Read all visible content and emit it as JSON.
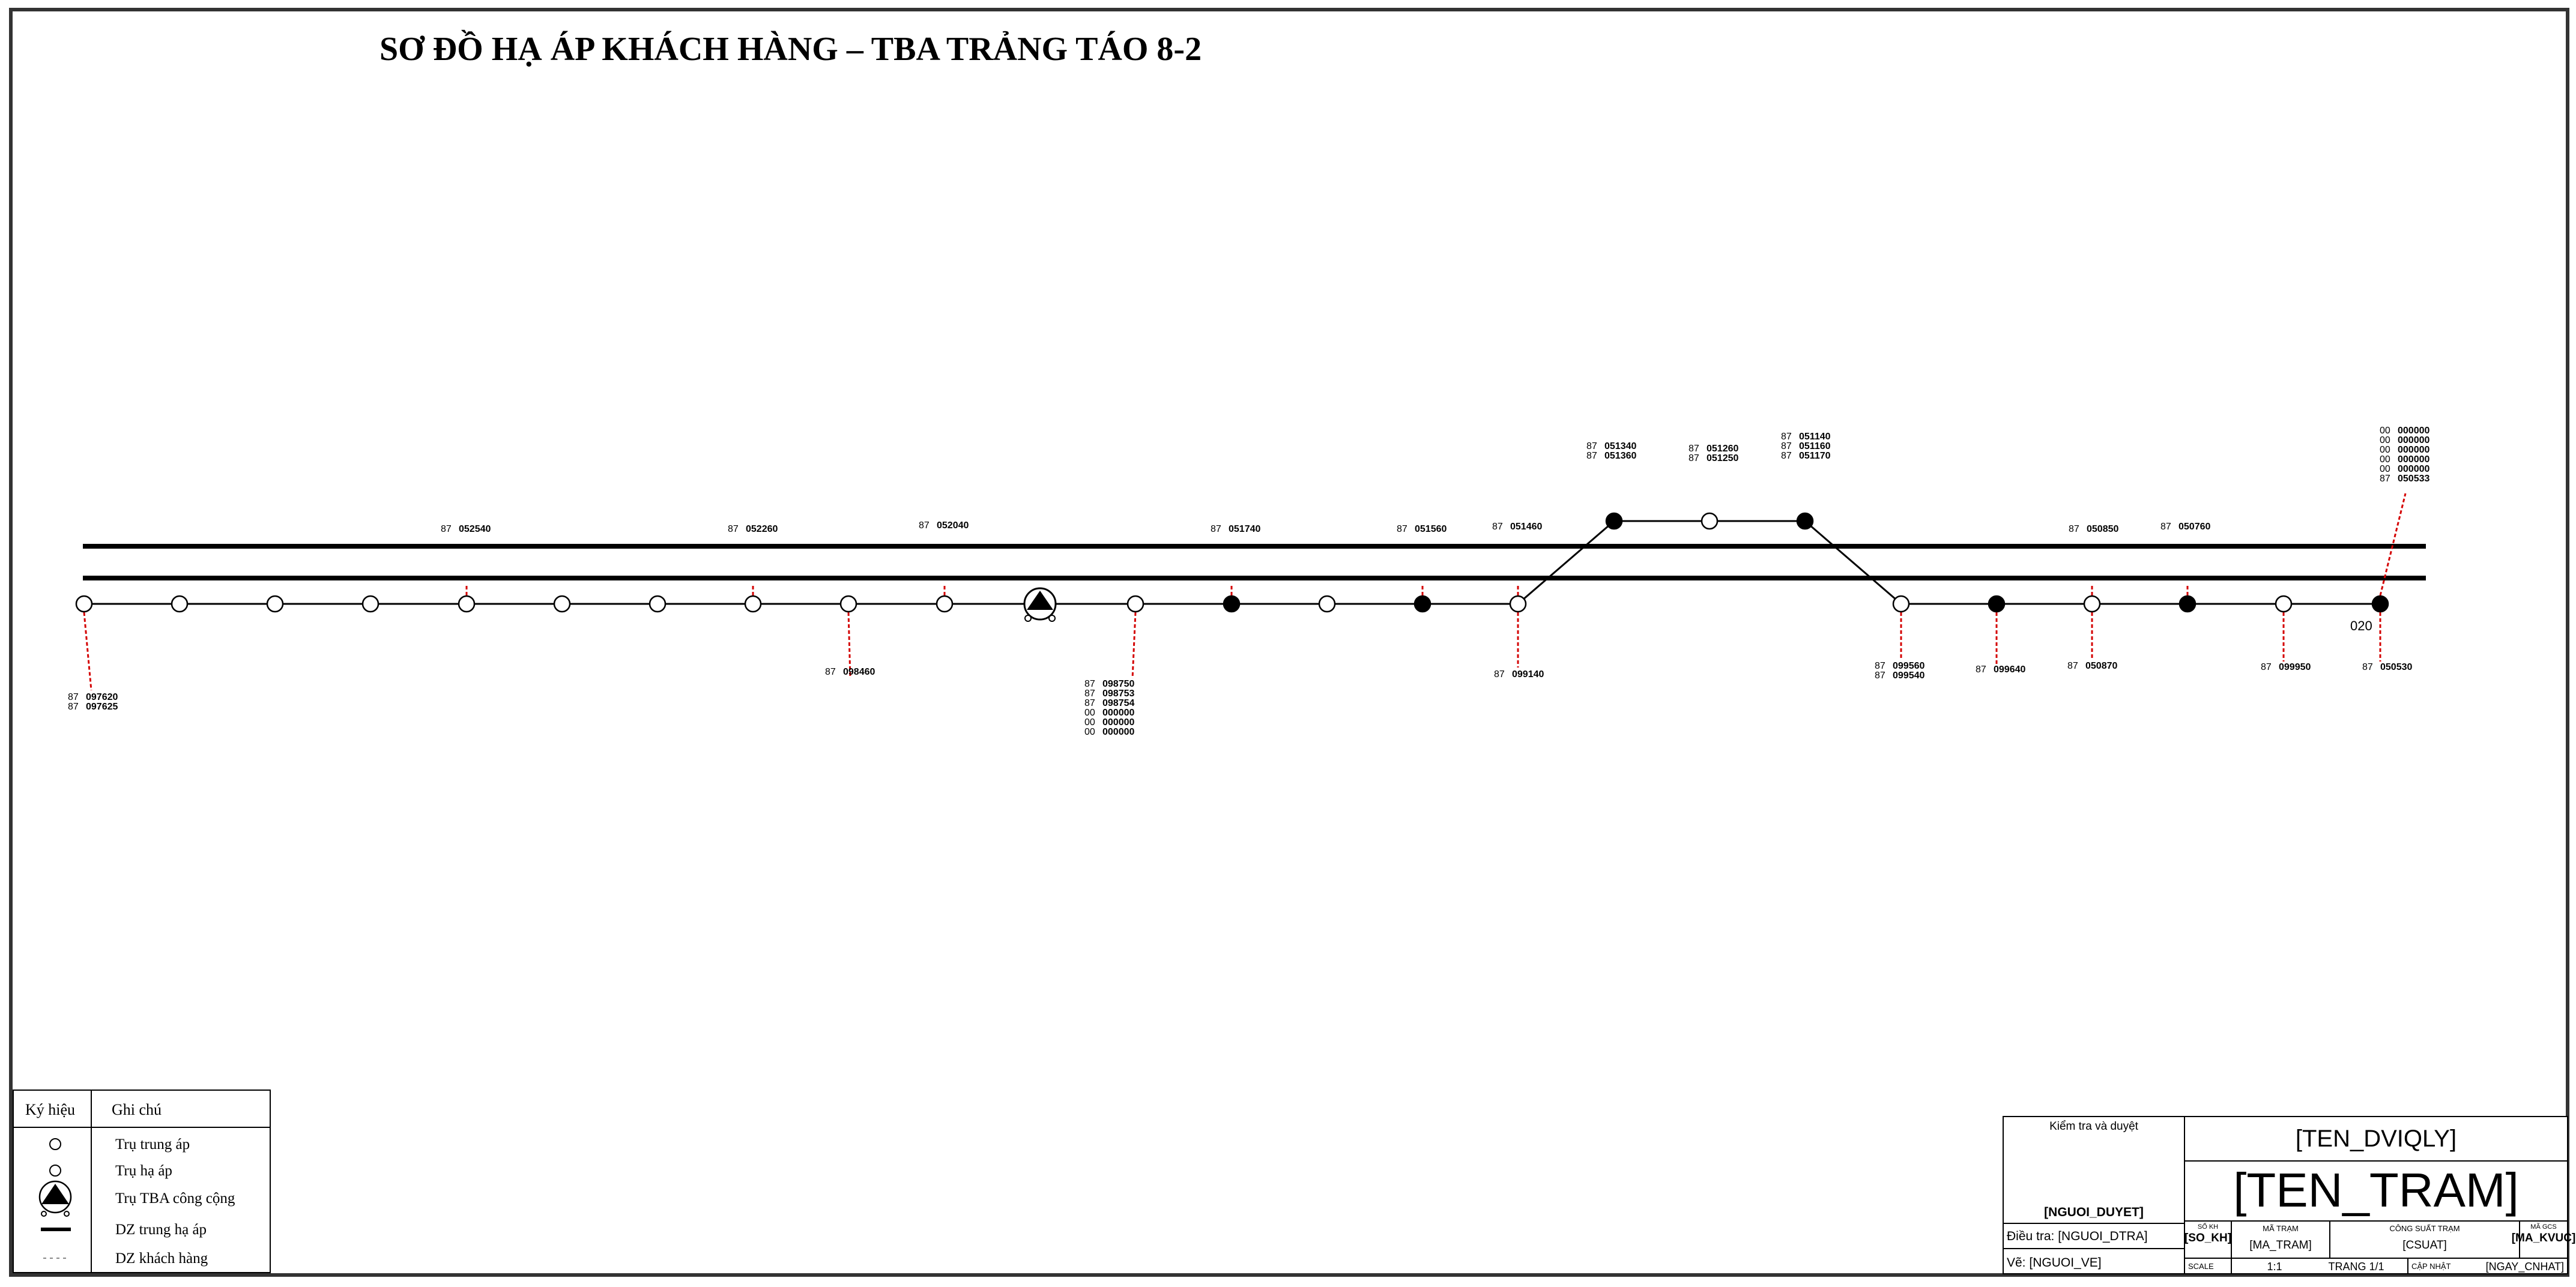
{
  "title": "SƠ ĐỒ HẠ ÁP KHÁCH HÀNG – TBA TRẢNG TÁO 8-2",
  "colors": {
    "line": "#000000",
    "customer_drop": "#d40000",
    "frame": "#333333",
    "background": "#ffffff"
  },
  "poles": [
    {
      "id": "p1",
      "kind": "open",
      "labels_below": [
        {
          "prefix": "87",
          "number": "097620"
        },
        {
          "prefix": "87",
          "number": "097625"
        }
      ]
    },
    {
      "id": "p2",
      "kind": "open"
    },
    {
      "id": "p3",
      "kind": "open"
    },
    {
      "id": "p4",
      "kind": "open"
    },
    {
      "id": "p5",
      "kind": "open",
      "labels_above": [
        {
          "prefix": "87",
          "number": "052540"
        }
      ]
    },
    {
      "id": "p6",
      "kind": "open"
    },
    {
      "id": "p7",
      "kind": "open"
    },
    {
      "id": "p8",
      "kind": "open",
      "labels_above": [
        {
          "prefix": "87",
          "number": "052260"
        }
      ]
    },
    {
      "id": "p9",
      "kind": "open",
      "labels_below": [
        {
          "prefix": "87",
          "number": "098460"
        }
      ]
    },
    {
      "id": "p10",
      "kind": "open",
      "labels_above": [
        {
          "prefix": "87",
          "number": "052040"
        }
      ]
    },
    {
      "id": "p11",
      "kind": "substation"
    },
    {
      "id": "p12",
      "kind": "open",
      "labels_below": [
        {
          "prefix": "87",
          "number": "098750"
        },
        {
          "prefix": "87",
          "number": "098753"
        },
        {
          "prefix": "87",
          "number": "098754"
        },
        {
          "prefix": "00",
          "number": "000000"
        },
        {
          "prefix": "00",
          "number": "000000"
        },
        {
          "prefix": "00",
          "number": "000000"
        }
      ]
    },
    {
      "id": "p13",
      "kind": "filled",
      "labels_above": [
        {
          "prefix": "87",
          "number": "051740"
        }
      ]
    },
    {
      "id": "p14",
      "kind": "open"
    },
    {
      "id": "p15",
      "kind": "filled",
      "labels_above": [
        {
          "prefix": "87",
          "number": "051560"
        }
      ]
    },
    {
      "id": "p16",
      "kind": "open",
      "labels_above": [
        {
          "prefix": "87",
          "number": "051460"
        }
      ],
      "labels_below": [
        {
          "prefix": "87",
          "number": "099140"
        }
      ]
    },
    {
      "id": "p17",
      "kind": "filled",
      "labels_above": [
        {
          "prefix": "87",
          "number": "051340"
        },
        {
          "prefix": "87",
          "number": "051360"
        }
      ]
    },
    {
      "id": "p18",
      "kind": "open",
      "labels_above": [
        {
          "prefix": "87",
          "number": "051260"
        },
        {
          "prefix": "87",
          "number": "051250"
        }
      ]
    },
    {
      "id": "p19",
      "kind": "filled",
      "labels_above": [
        {
          "prefix": "87",
          "number": "051140"
        },
        {
          "prefix": "87",
          "number": "051160"
        },
        {
          "prefix": "87",
          "number": "051170"
        }
      ]
    },
    {
      "id": "p20",
      "kind": "open",
      "labels_below": [
        {
          "prefix": "87",
          "number": "099560"
        },
        {
          "prefix": "87",
          "number": "099540"
        }
      ]
    },
    {
      "id": "p21",
      "kind": "filled",
      "labels_below": [
        {
          "prefix": "87",
          "number": "099640"
        }
      ]
    },
    {
      "id": "p22",
      "kind": "open",
      "labels_above": [
        {
          "prefix": "87",
          "number": "050850"
        }
      ],
      "labels_below": [
        {
          "prefix": "87",
          "number": "050870"
        }
      ]
    },
    {
      "id": "p23",
      "kind": "filled",
      "labels_above": [
        {
          "prefix": "87",
          "number": "050760"
        }
      ]
    },
    {
      "id": "p24",
      "kind": "open",
      "labels_below": [
        {
          "prefix": "87",
          "number": "099950"
        }
      ]
    },
    {
      "id": "p25",
      "kind": "filled",
      "pole_code": "020",
      "labels_above": [
        {
          "prefix": "00",
          "number": "000000"
        },
        {
          "prefix": "00",
          "number": "000000"
        },
        {
          "prefix": "00",
          "number": "000000"
        },
        {
          "prefix": "00",
          "number": "000000"
        },
        {
          "prefix": "00",
          "number": "000000"
        },
        {
          "prefix": "87",
          "number": "050533"
        }
      ],
      "labels_below": [
        {
          "prefix": "87",
          "number": "050530"
        }
      ]
    }
  ],
  "legend": {
    "col_symbol": "Ký hiệu",
    "col_note": "Ghi chú",
    "rows": [
      {
        "symbol": "mv-pole-icon",
        "label": "Trụ trung áp"
      },
      {
        "symbol": "lv-pole-icon",
        "label": "Trụ hạ áp"
      },
      {
        "symbol": "substation-icon",
        "label": "Trụ TBA công cộng"
      },
      {
        "symbol": "thick-line-icon",
        "label": "DZ trung hạ áp"
      },
      {
        "symbol": "dashed-line-icon",
        "label": "DZ khách hàng"
      }
    ]
  },
  "title_block": {
    "review_label": "Kiểm tra và duyệt",
    "approver": "[NGUOI_DUYET]",
    "surveyor": "Điều tra: [NGUOI_DTRA]",
    "drafter": "Vẽ: [NGUOI_VE]",
    "unit_name": "[TEN_DVIQLY]",
    "station_name": "[TEN_TRAM]",
    "drawing_no_label": "SỐ KH",
    "drawing_no_value": "[SO_KH]",
    "station_code_label": "MÃ TRẠM",
    "station_code_value": "[MA_TRAM]",
    "capacity_label": "CÔNG SUẤT TRẠM",
    "capacity_value": "[CSUAT]",
    "area_code_label": "MÃ GCS",
    "area_code_value": "[MA_KVUC]",
    "scale_label": "SCALE",
    "scale_value": "1:1",
    "page_value": "TRANG 1/1",
    "update_label": "CẬP NHẬT",
    "update_value": "[NGAY_CNHAT]"
  }
}
